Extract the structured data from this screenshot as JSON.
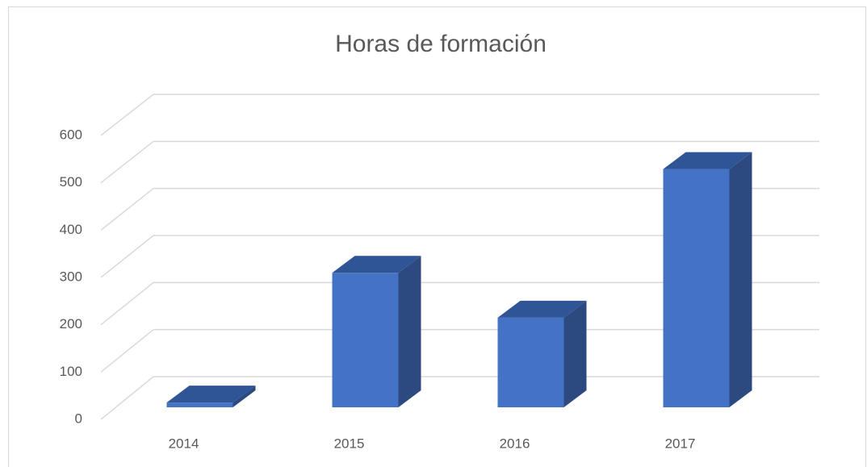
{
  "chart_data": {
    "type": "bar3d",
    "title": "Horas de formación",
    "categories": [
      "2014",
      "2015",
      "2016",
      "2017"
    ],
    "values": [
      10,
      285,
      190,
      505
    ],
    "color": "#4472c4",
    "ylim": [
      0,
      600
    ],
    "yticks": [
      0,
      100,
      200,
      300,
      400,
      500,
      600
    ],
    "grid": true
  }
}
